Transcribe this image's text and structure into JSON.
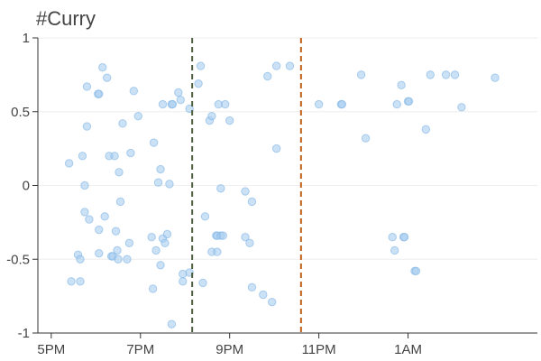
{
  "chart_data": {
    "type": "scatter",
    "title": "#Curry",
    "xlabel": "",
    "ylabel": "",
    "x_unit": "hours since 5PM",
    "xlim": [
      4.7,
      15.9
    ],
    "ylim": [
      -1,
      1
    ],
    "x_ticks": [
      {
        "value": 5,
        "label": "5PM"
      },
      {
        "value": 7,
        "label": "7PM"
      },
      {
        "value": 9,
        "label": "9PM"
      },
      {
        "value": 11,
        "label": "11PM"
      },
      {
        "value": 13,
        "label": "1AM"
      }
    ],
    "y_ticks": [
      {
        "value": 1,
        "label": "1"
      },
      {
        "value": 0.5,
        "label": "0.5"
      },
      {
        "value": 0,
        "label": "0"
      },
      {
        "value": -0.5,
        "label": "-0.5"
      },
      {
        "value": -1,
        "label": "-1"
      }
    ],
    "grid": true,
    "colors": {
      "point_fill": "#a6cdf0",
      "point_stroke": "#7fb3e3",
      "vline_1": "#4f5f3f",
      "vline_2": "#c0601a",
      "axis": "#333333",
      "grid": "#eeeeee"
    },
    "vlines": [
      {
        "x": 8.16,
        "style": "dashed"
      },
      {
        "x": 10.6,
        "style": "dashed"
      }
    ],
    "points": [
      [
        5.4,
        0.15
      ],
      [
        5.45,
        -0.65
      ],
      [
        5.6,
        -0.47
      ],
      [
        5.65,
        -0.65
      ],
      [
        5.65,
        -0.5
      ],
      [
        5.7,
        0.2
      ],
      [
        5.75,
        -0.18
      ],
      [
        5.75,
        0.0
      ],
      [
        5.8,
        0.67
      ],
      [
        5.8,
        0.4
      ],
      [
        5.85,
        -0.23
      ],
      [
        6.05,
        0.62
      ],
      [
        6.07,
        0.62
      ],
      [
        6.07,
        -0.3
      ],
      [
        6.07,
        -0.46
      ],
      [
        6.15,
        0.8
      ],
      [
        6.2,
        -0.21
      ],
      [
        6.25,
        0.73
      ],
      [
        6.3,
        0.2
      ],
      [
        6.35,
        -0.48
      ],
      [
        6.38,
        -0.48
      ],
      [
        6.42,
        0.2
      ],
      [
        6.45,
        -0.31
      ],
      [
        6.48,
        -0.44
      ],
      [
        6.5,
        -0.5
      ],
      [
        6.52,
        0.09
      ],
      [
        6.55,
        -0.11
      ],
      [
        6.6,
        0.42
      ],
      [
        6.7,
        -0.5
      ],
      [
        6.75,
        -0.39
      ],
      [
        6.78,
        0.22
      ],
      [
        6.85,
        0.64
      ],
      [
        6.95,
        0.47
      ],
      [
        7.25,
        -0.35
      ],
      [
        7.28,
        -0.7
      ],
      [
        7.3,
        0.29
      ],
      [
        7.35,
        -0.44
      ],
      [
        7.4,
        0.02
      ],
      [
        7.45,
        0.11
      ],
      [
        7.45,
        -0.54
      ],
      [
        7.5,
        -0.36
      ],
      [
        7.5,
        0.55
      ],
      [
        7.55,
        -0.39
      ],
      [
        7.6,
        -0.33
      ],
      [
        7.65,
        0.01
      ],
      [
        7.7,
        -0.94
      ],
      [
        7.7,
        0.55
      ],
      [
        7.72,
        0.55
      ],
      [
        7.85,
        0.63
      ],
      [
        7.9,
        0.58
      ],
      [
        7.95,
        -0.6
      ],
      [
        7.95,
        -0.65
      ],
      [
        8.1,
        -0.59
      ],
      [
        8.1,
        0.52
      ],
      [
        8.3,
        0.69
      ],
      [
        8.35,
        0.81
      ],
      [
        8.4,
        -0.66
      ],
      [
        8.45,
        -0.21
      ],
      [
        8.55,
        0.44
      ],
      [
        8.6,
        -0.45
      ],
      [
        8.6,
        0.47
      ],
      [
        8.7,
        -0.34
      ],
      [
        8.72,
        -0.34
      ],
      [
        8.72,
        -0.45
      ],
      [
        8.75,
        0.55
      ],
      [
        8.8,
        -0.02
      ],
      [
        8.8,
        -0.34
      ],
      [
        8.85,
        -0.34
      ],
      [
        8.9,
        0.55
      ],
      [
        9.0,
        0.44
      ],
      [
        9.35,
        -0.35
      ],
      [
        9.35,
        -0.04
      ],
      [
        9.45,
        -0.39
      ],
      [
        9.5,
        -0.11
      ],
      [
        9.5,
        -0.69
      ],
      [
        9.75,
        -0.74
      ],
      [
        9.85,
        0.74
      ],
      [
        9.95,
        -0.79
      ],
      [
        10.05,
        0.25
      ],
      [
        10.05,
        0.81
      ],
      [
        10.35,
        0.81
      ],
      [
        11.0,
        0.55
      ],
      [
        11.5,
        0.55
      ],
      [
        11.52,
        0.55
      ],
      [
        11.95,
        0.75
      ],
      [
        12.05,
        0.32
      ],
      [
        12.65,
        -0.35
      ],
      [
        12.7,
        -0.44
      ],
      [
        12.75,
        0.55
      ],
      [
        12.85,
        0.68
      ],
      [
        12.9,
        -0.35
      ],
      [
        12.92,
        -0.35
      ],
      [
        13.0,
        0.57
      ],
      [
        13.02,
        0.57
      ],
      [
        13.15,
        -0.58
      ],
      [
        13.18,
        -0.58
      ],
      [
        13.4,
        0.38
      ],
      [
        13.5,
        0.75
      ],
      [
        13.85,
        0.75
      ],
      [
        14.05,
        0.75
      ],
      [
        14.2,
        0.53
      ],
      [
        14.95,
        0.73
      ]
    ]
  }
}
